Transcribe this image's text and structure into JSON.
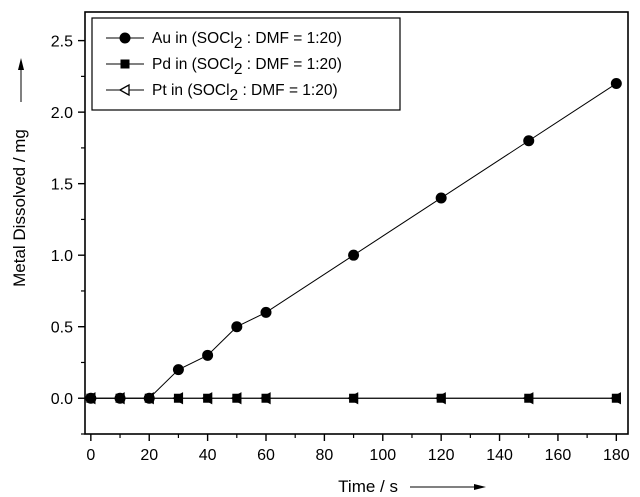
{
  "chart_data": {
    "type": "line",
    "xlabel": "Time / s",
    "ylabel": "Metal Dissolved / mg",
    "xlim": [
      -2,
      184
    ],
    "ylim": [
      -0.25,
      2.7
    ],
    "x_ticks": [
      0,
      20,
      40,
      60,
      80,
      100,
      120,
      140,
      160,
      180
    ],
    "y_ticks": [
      0.0,
      0.5,
      1.0,
      1.5,
      2.0,
      2.5
    ],
    "x_tick_labels": [
      "0",
      "20",
      "40",
      "60",
      "80",
      "100",
      "120",
      "140",
      "160",
      "180"
    ],
    "y_tick_labels": [
      "0.0",
      "0.5",
      "1.0",
      "1.5",
      "2.0",
      "2.5"
    ],
    "x": [
      0,
      10,
      20,
      30,
      40,
      50,
      60,
      90,
      120,
      150,
      180
    ],
    "series": [
      {
        "name": "Au in (SOCl2 : DMF = 1:20)",
        "legend_main": "Au in (SOCl",
        "legend_sub": "2",
        "legend_tail": " : DMF = 1:20)",
        "marker": "filled-circle",
        "values": [
          0,
          0,
          0,
          0.2,
          0.3,
          0.5,
          0.6,
          1.0,
          1.4,
          1.8,
          2.2
        ]
      },
      {
        "name": "Pd in (SOCl2 : DMF = 1:20)",
        "legend_main": "Pd in (SOCl",
        "legend_sub": "2",
        "legend_tail": " : DMF = 1:20)",
        "marker": "filled-square",
        "values": [
          0,
          0,
          0,
          0,
          0,
          0,
          0,
          0,
          0,
          0,
          0
        ]
      },
      {
        "name": "Pt in (SOCl2 : DMF = 1:20)",
        "legend_main": "Pt  in (SOCl",
        "legend_sub": "2",
        "legend_tail": " : DMF = 1:20)",
        "marker": "open-left-triangle",
        "values": [
          0,
          0,
          0,
          0,
          0,
          0,
          0,
          0,
          0,
          0,
          0
        ]
      }
    ],
    "legend_position": "top-left",
    "grid": false
  }
}
